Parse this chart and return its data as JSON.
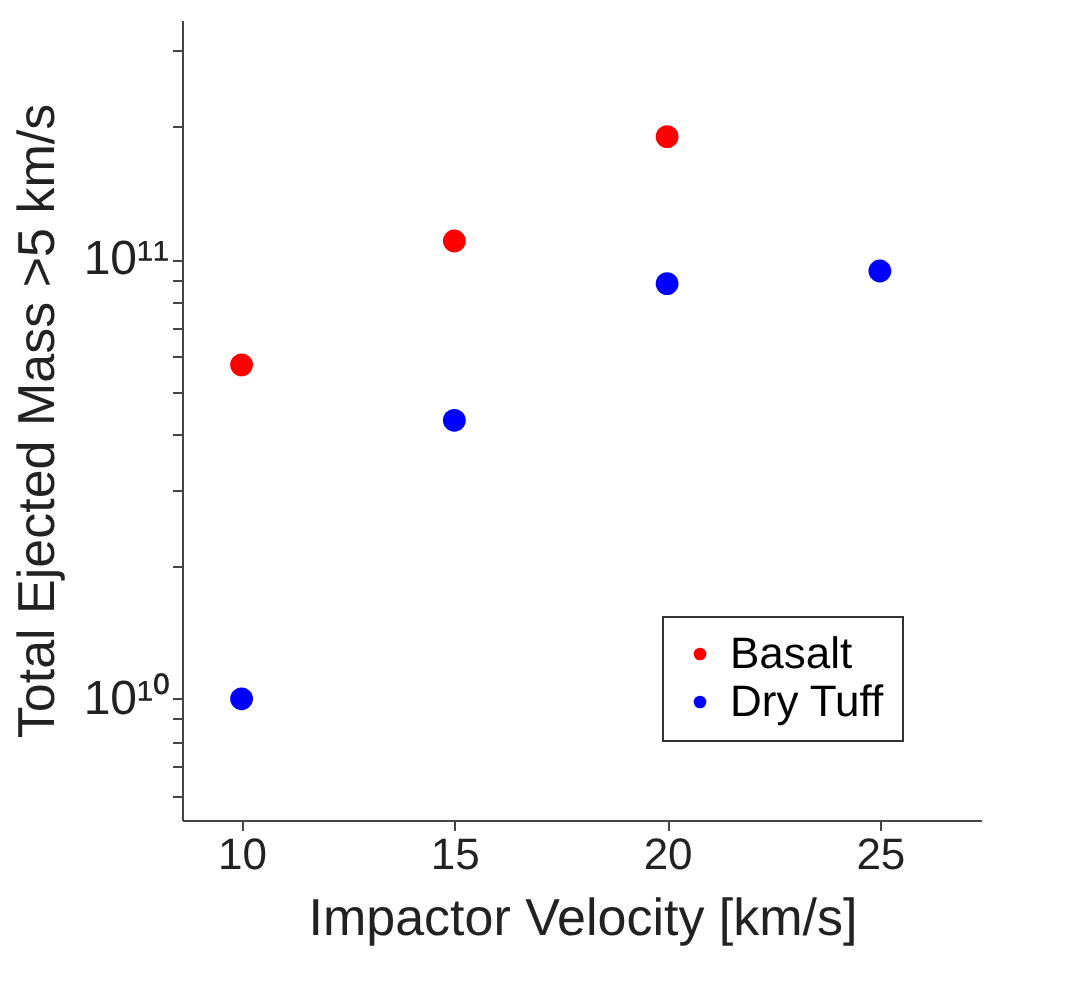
{
  "chart_data": {
    "type": "scatter",
    "xlabel": "Impactor Velocity [km/s]",
    "ylabel": "Total Ejected Mass >5 km/s",
    "x": [
      10,
      15,
      20,
      25
    ],
    "series": [
      {
        "name": "Basalt",
        "color": "#ff0000",
        "values": [
          57500000000.0,
          110000000000.0,
          190000000000.0,
          null
        ]
      },
      {
        "name": "Dry Tuff",
        "color": "#0000ff",
        "values": [
          10000000000.0,
          43000000000.0,
          88000000000.0,
          94000000000.0
        ]
      }
    ],
    "log": "y",
    "xlim": [
      8.6,
      27.4
    ],
    "ylim": [
      5300000000.0,
      350000000000.0
    ],
    "xticks": [
      10,
      15,
      20,
      25
    ],
    "yticks": [
      {
        "value": 6000000000.0,
        "label": null
      },
      {
        "value": 7000000000.0,
        "label": null
      },
      {
        "value": 8000000000.0,
        "label": null
      },
      {
        "value": 9000000000.0,
        "label": null
      },
      {
        "value": 10000000000.0,
        "label": "10¹⁰"
      },
      {
        "value": 20000000000.0,
        "label": null
      },
      {
        "value": 30000000000.0,
        "label": null
      },
      {
        "value": 40000000000.0,
        "label": null
      },
      {
        "value": 50000000000.0,
        "label": null
      },
      {
        "value": 60000000000.0,
        "label": null
      },
      {
        "value": 70000000000.0,
        "label": null
      },
      {
        "value": 80000000000.0,
        "label": null
      },
      {
        "value": 90000000000.0,
        "label": null
      },
      {
        "value": 100000000000.0,
        "label": "10¹¹"
      },
      {
        "value": 200000000000.0,
        "label": null
      },
      {
        "value": 300000000000.0,
        "label": null
      }
    ],
    "grid": false,
    "legend": "bottom right",
    "marker": "circle"
  }
}
